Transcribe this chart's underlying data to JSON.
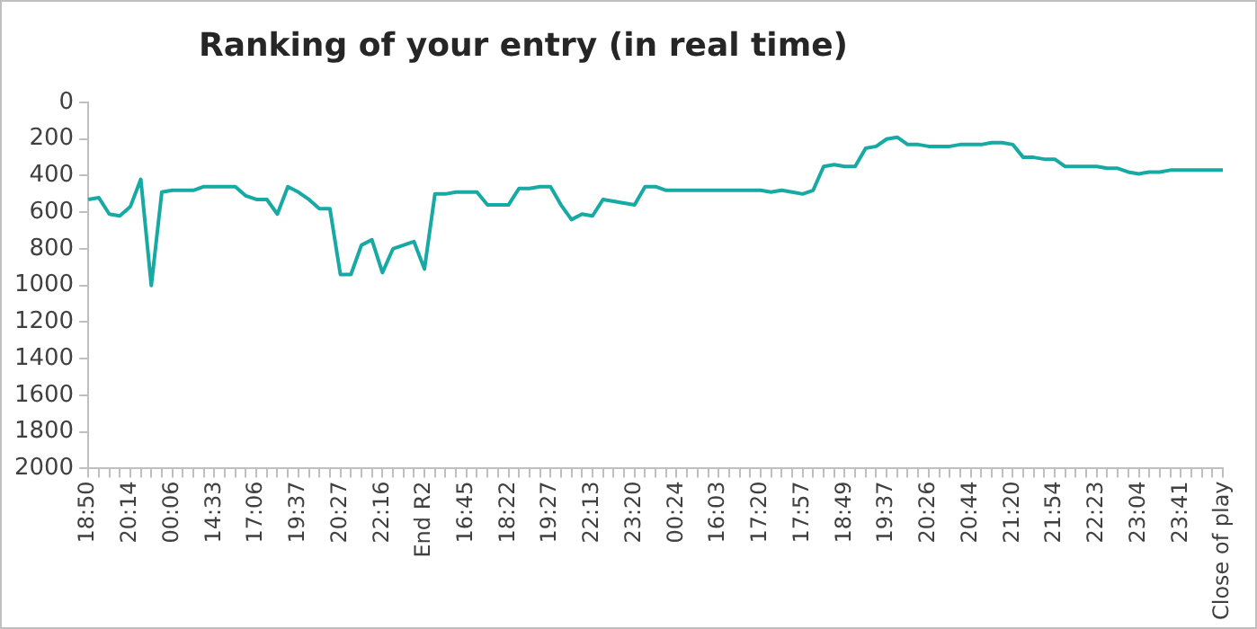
{
  "chart_data": {
    "type": "line",
    "title": "Ranking of your entry (in real time)",
    "categories": [
      "18:50",
      null,
      null,
      null,
      "20:14",
      null,
      null,
      null,
      "00:06",
      null,
      null,
      null,
      "14:33",
      null,
      null,
      null,
      "17:06",
      null,
      null,
      null,
      "19:37",
      null,
      null,
      null,
      "20:27",
      null,
      null,
      null,
      "22:16",
      null,
      null,
      null,
      "End R2",
      null,
      null,
      null,
      "16:45",
      null,
      null,
      null,
      "18:22",
      null,
      null,
      null,
      "19:27",
      null,
      null,
      null,
      "22:13",
      null,
      null,
      null,
      "23:20",
      null,
      null,
      null,
      "00:24",
      null,
      null,
      null,
      "16:03",
      null,
      null,
      null,
      "17:20",
      null,
      null,
      null,
      "17:57",
      null,
      null,
      null,
      "18:49",
      null,
      null,
      null,
      "19:37",
      null,
      null,
      null,
      "20:26",
      null,
      null,
      null,
      "20:44",
      null,
      null,
      null,
      "21:20",
      null,
      null,
      null,
      "21:54",
      null,
      null,
      null,
      "22:23",
      null,
      null,
      null,
      "23:04",
      null,
      null,
      null,
      "23:41",
      null,
      null,
      null,
      "Close of play"
    ],
    "series": [
      {
        "color": "#17a9a4",
        "values": [
          530,
          520,
          610,
          620,
          570,
          420,
          1000,
          490,
          480,
          480,
          480,
          460,
          460,
          460,
          460,
          510,
          530,
          530,
          610,
          460,
          490,
          530,
          580,
          580,
          940,
          940,
          780,
          750,
          930,
          800,
          780,
          760,
          910,
          500,
          500,
          490,
          490,
          490,
          560,
          560,
          560,
          470,
          470,
          460,
          460,
          560,
          640,
          610,
          620,
          530,
          540,
          550,
          560,
          460,
          460,
          480,
          480,
          480,
          480,
          480,
          480,
          480,
          480,
          480,
          480,
          490,
          480,
          490,
          500,
          480,
          350,
          340,
          350,
          350,
          250,
          240,
          200,
          190,
          230,
          230,
          240,
          240,
          240,
          230,
          230,
          230,
          220,
          220,
          230,
          300,
          300,
          310,
          310,
          350,
          350,
          350,
          350,
          360,
          360,
          380,
          390,
          380,
          380,
          370,
          370,
          370,
          370,
          370,
          370
        ]
      }
    ],
    "ylim": [
      2000,
      0
    ],
    "yticks": [
      0,
      200,
      400,
      600,
      800,
      1000,
      1200,
      1400,
      1600,
      1800,
      2000
    ]
  }
}
